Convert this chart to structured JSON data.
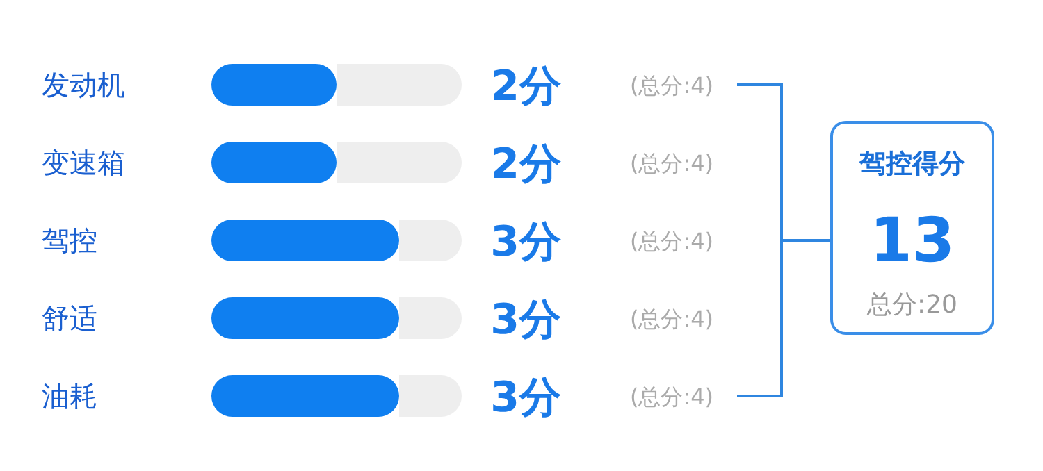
{
  "chart_data": {
    "type": "bar",
    "orientation": "horizontal",
    "categories": [
      "发动机",
      "变速箱",
      "驾控",
      "舒适",
      "油耗"
    ],
    "values": [
      2,
      2,
      3,
      3,
      3
    ],
    "color": "#0f7ff0",
    "value_labels": [
      "2分",
      "2分",
      "3分",
      "3分",
      "3分"
    ],
    "xlim": [
      0,
      4
    ],
    "tick_labels": "y",
    "grid": false,
    "annotations": [
      "(总分:4)",
      "(总分:4)",
      "(总分:4)",
      "(总分:4)",
      "(总分:4)",
      "驾控得分",
      "13",
      "总分:20"
    ]
  }
}
